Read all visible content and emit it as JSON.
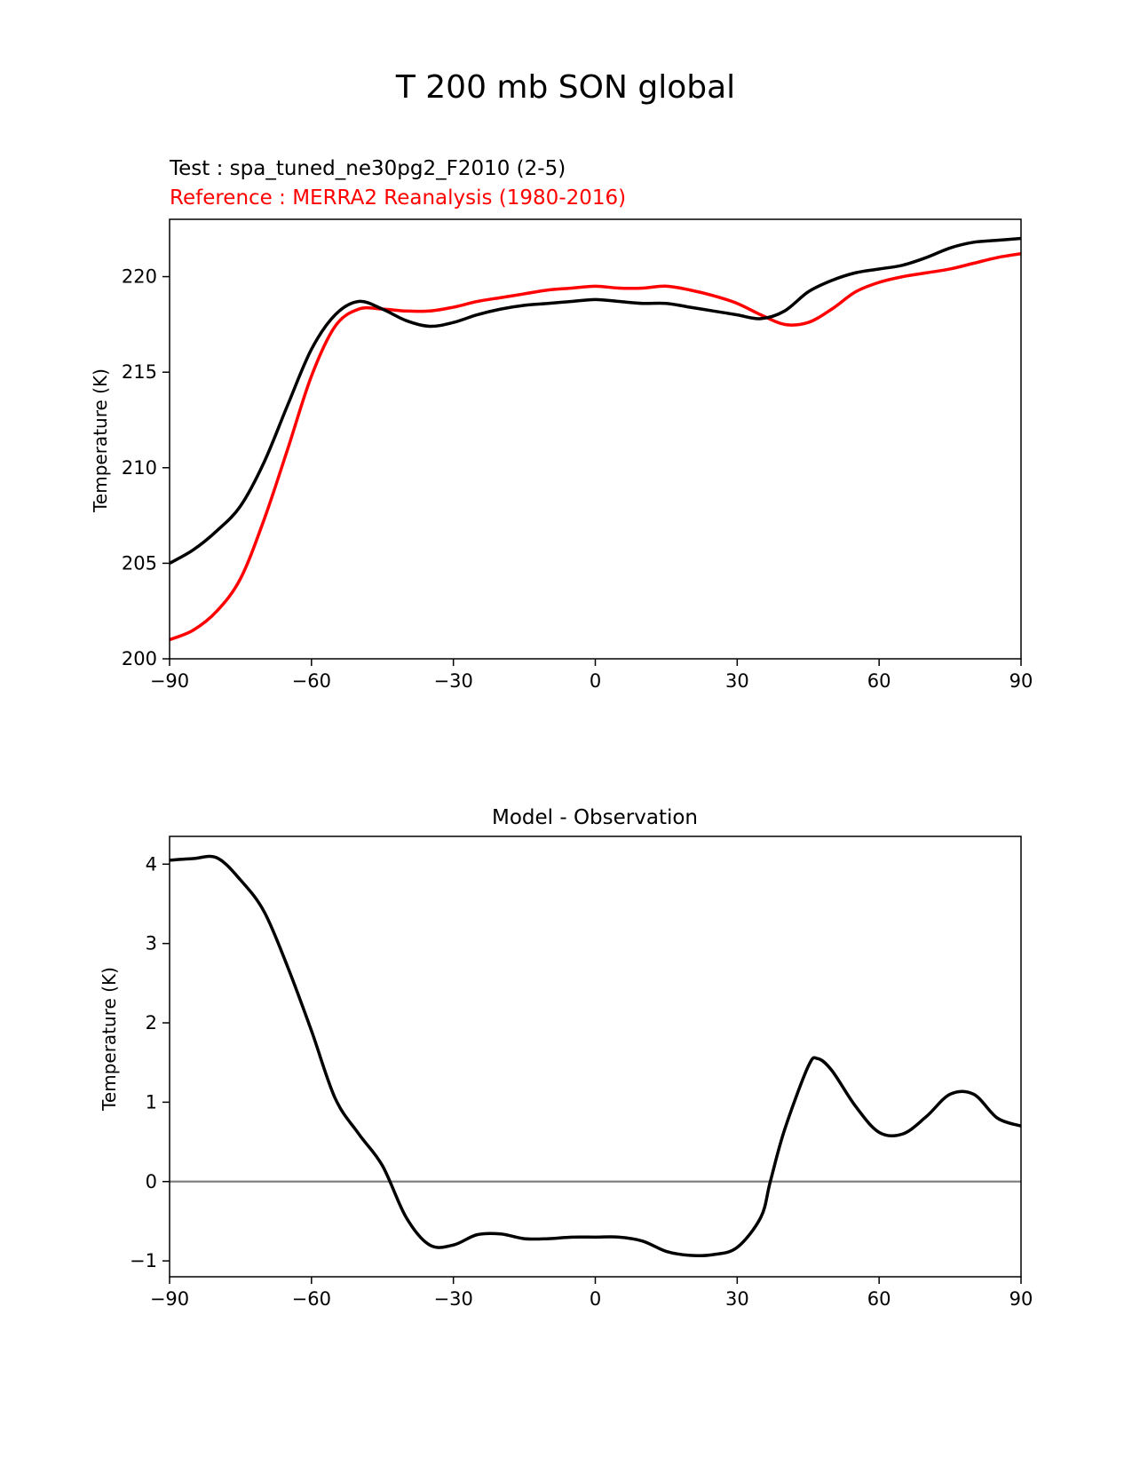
{
  "figure": {
    "title": "T 200 mb SON global"
  },
  "colors": {
    "test": "#000000",
    "reference": "#ff0000",
    "zero_line": "#808080"
  },
  "chart_data": [
    {
      "type": "line",
      "test_label": "Test : spa_tuned_ne30pg2_F2010 (2-5)",
      "reference_label": "Reference : MERRA2 Reanalysis (1980-2016)",
      "xlabel": "",
      "ylabel": "Temperature (K)",
      "xlim": [
        -90,
        90
      ],
      "ylim": [
        200,
        223
      ],
      "xticks": [
        -90,
        -60,
        -30,
        0,
        30,
        60,
        90
      ],
      "xtick_labels": [
        "−90",
        "−60",
        "−30",
        "0",
        "30",
        "60",
        "90"
      ],
      "yticks": [
        200,
        205,
        210,
        215,
        220
      ],
      "ytick_labels": [
        "200",
        "205",
        "210",
        "215",
        "220"
      ],
      "grid": false,
      "x": [
        -90,
        -85,
        -80,
        -75,
        -70,
        -65,
        -60,
        -55,
        -50,
        -45,
        -40,
        -35,
        -30,
        -25,
        -20,
        -15,
        -10,
        -5,
        0,
        5,
        10,
        15,
        20,
        25,
        30,
        35,
        40,
        45,
        50,
        55,
        60,
        65,
        70,
        75,
        80,
        85,
        90
      ],
      "series": [
        {
          "role": "test",
          "values": [
            205.0,
            205.7,
            206.7,
            208.0,
            210.3,
            213.3,
            216.2,
            218.0,
            218.7,
            218.3,
            217.7,
            217.4,
            217.6,
            218.0,
            218.3,
            218.5,
            218.6,
            218.7,
            218.8,
            218.7,
            218.6,
            218.6,
            218.4,
            218.2,
            218.0,
            217.8,
            218.2,
            219.2,
            219.8,
            220.2,
            220.4,
            220.6,
            221.0,
            221.5,
            221.8,
            221.9,
            222.0
          ]
        },
        {
          "role": "reference",
          "values": [
            201.0,
            201.5,
            202.5,
            204.2,
            207.3,
            211.0,
            214.8,
            217.4,
            218.3,
            218.3,
            218.2,
            218.2,
            218.4,
            218.7,
            218.9,
            219.1,
            219.3,
            219.4,
            219.5,
            219.4,
            219.4,
            219.5,
            219.3,
            219.0,
            218.6,
            218.0,
            217.5,
            217.6,
            218.3,
            219.2,
            219.7,
            220.0,
            220.2,
            220.4,
            220.7,
            221.0,
            221.2
          ]
        }
      ]
    },
    {
      "type": "line",
      "title": "Model - Observation",
      "xlabel": "",
      "ylabel": "Temperature (K)",
      "xlim": [
        -90,
        90
      ],
      "ylim": [
        -1.2,
        4.35
      ],
      "xticks": [
        -90,
        -60,
        -30,
        0,
        30,
        60,
        90
      ],
      "xtick_labels": [
        "−90",
        "−60",
        "−30",
        "0",
        "30",
        "60",
        "90"
      ],
      "yticks": [
        -1,
        0,
        1,
        2,
        3,
        4
      ],
      "ytick_labels": [
        "−1",
        "0",
        "1",
        "2",
        "3",
        "4"
      ],
      "grid": false,
      "zero_line": true,
      "x": [
        -90,
        -85,
        -80,
        -75,
        -70,
        -65,
        -60,
        -55,
        -50,
        -45,
        -40,
        -35,
        -30,
        -25,
        -20,
        -15,
        -10,
        -5,
        0,
        5,
        10,
        15,
        20,
        25,
        30,
        35,
        37,
        40,
        45,
        47,
        50,
        55,
        60,
        65,
        70,
        75,
        80,
        85,
        90
      ],
      "series": [
        {
          "role": "difference",
          "values": [
            4.05,
            4.07,
            4.08,
            3.8,
            3.4,
            2.7,
            1.9,
            1.05,
            0.6,
            0.2,
            -0.45,
            -0.8,
            -0.8,
            -0.67,
            -0.66,
            -0.72,
            -0.72,
            -0.7,
            -0.7,
            -0.7,
            -0.75,
            -0.88,
            -0.93,
            -0.92,
            -0.83,
            -0.45,
            0.0,
            0.65,
            1.45,
            1.55,
            1.4,
            0.95,
            0.62,
            0.6,
            0.82,
            1.1,
            1.1,
            0.8,
            0.7
          ]
        }
      ]
    }
  ]
}
